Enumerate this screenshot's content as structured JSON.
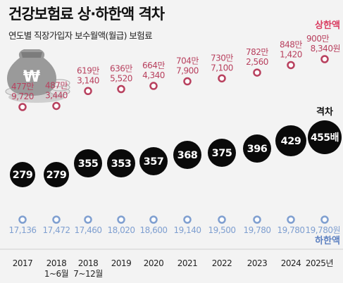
{
  "title": "건강보험료 상·하한액 격차",
  "subtitle": "연도별 직장가입자 보수월액(월급) 보험료",
  "chart_data": {
    "type": "range",
    "categories": [
      "2017",
      "2018\n1~6월",
      "2018\n7~12월",
      "2019",
      "2020",
      "2021",
      "2022",
      "2023",
      "2024",
      "2025년"
    ],
    "upper_label": "상한액",
    "lower_label": "하한액",
    "gap_label": "격차",
    "upper_values": [
      4779720,
      4873440,
      6193140,
      6365520,
      6644340,
      7047900,
      7307100,
      7822560,
      8481420,
      9008340
    ],
    "upper_lines": [
      [
        "477만",
        "9,720"
      ],
      [
        "487만",
        "3,440"
      ],
      [
        "619만",
        "3,140"
      ],
      [
        "636만",
        "5,520"
      ],
      [
        "664만",
        "4,340"
      ],
      [
        "704만",
        "7,900"
      ],
      [
        "730만",
        "7,100"
      ],
      [
        "782만",
        "2,560"
      ],
      [
        "848만",
        "1,420"
      ],
      [
        "900만",
        "8,340원"
      ]
    ],
    "lower_values": [
      17136,
      17472,
      17460,
      18020,
      18600,
      19140,
      19500,
      19780,
      19780,
      19780
    ],
    "lower_labels": [
      "17,136",
      "17,472",
      "17,460",
      "18,020",
      "18,600",
      "19,140",
      "19,500",
      "19,780",
      "19,780",
      "19,780원"
    ],
    "gap_values": [
      279,
      279,
      355,
      353,
      357,
      368,
      375,
      396,
      429,
      455
    ],
    "gap_labels": [
      "279",
      "279",
      "355",
      "353",
      "357",
      "368",
      "375",
      "396",
      "429",
      "455배"
    ],
    "colors": {
      "upper": "#b8405e",
      "lower": "#7f9fd0",
      "circle": "#0a0a0a",
      "upper_label": "#d93a5f",
      "lower_label": "#5b7fc0"
    }
  }
}
